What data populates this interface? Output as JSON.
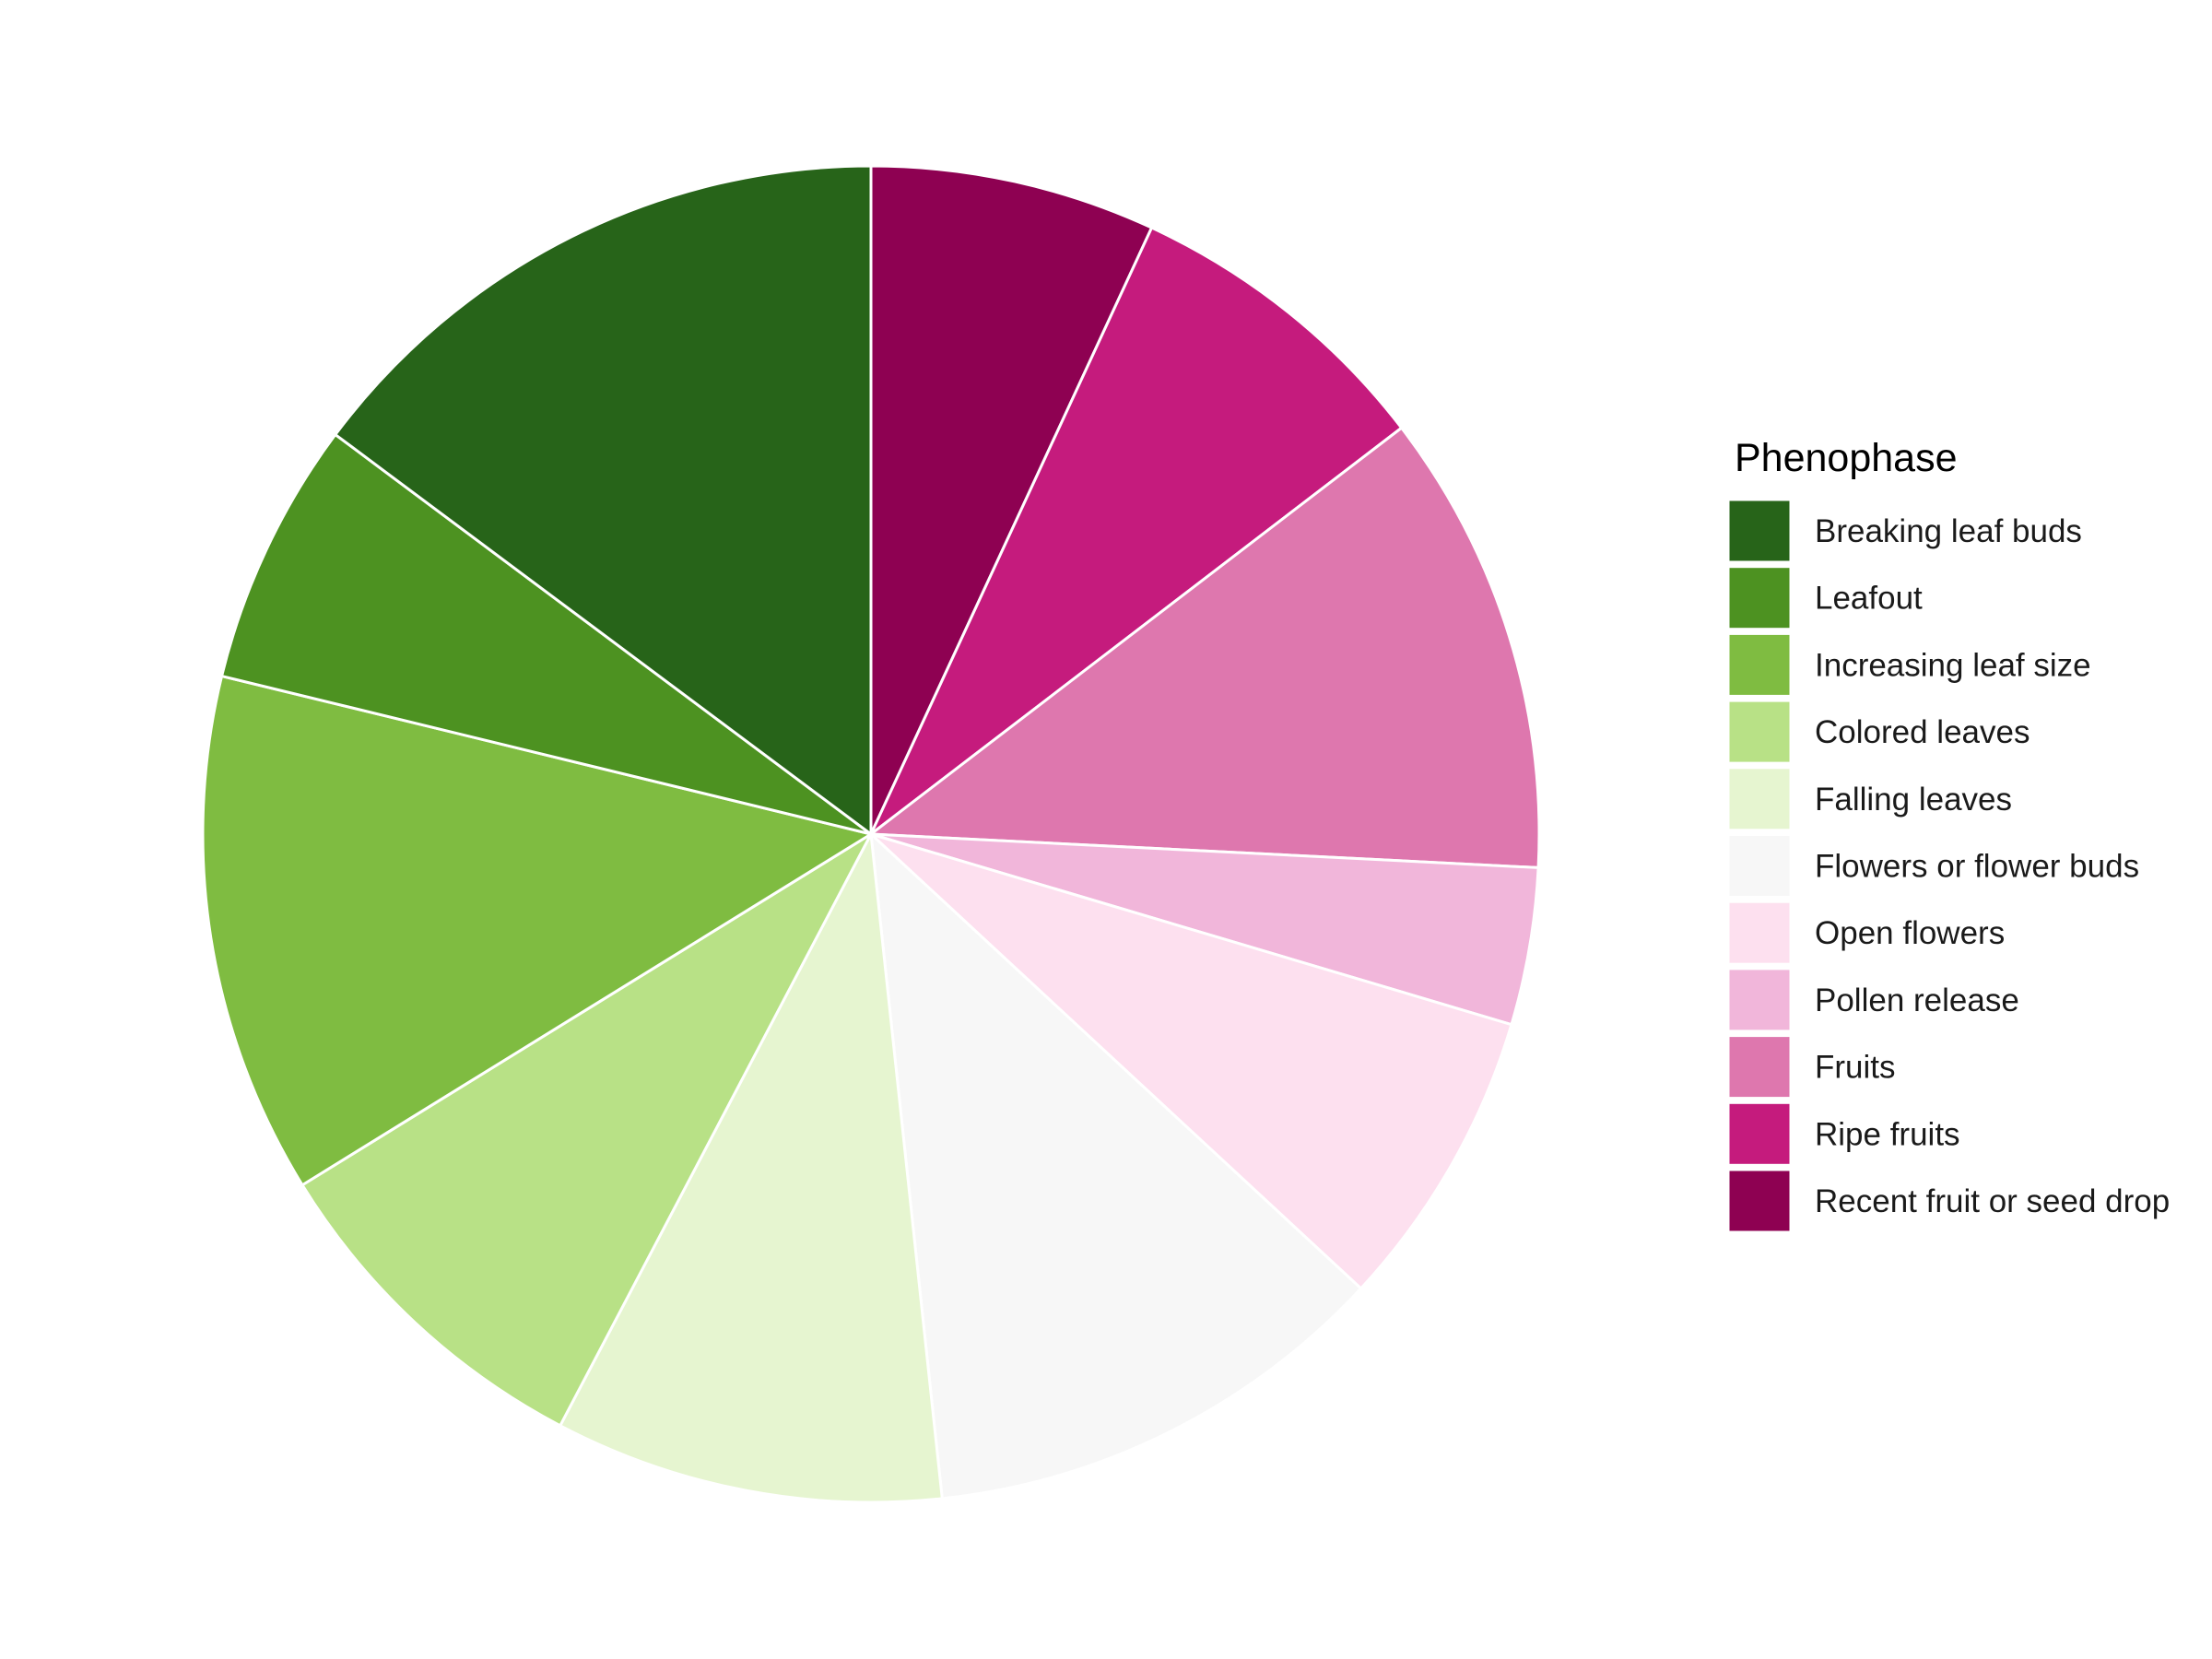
{
  "chart_data": {
    "type": "pie",
    "legend_title": "Phenophase",
    "legend_position": "right",
    "start_angle_deg": 0,
    "direction": "clockwise",
    "slices": [
      {
        "label": "Recent fruit or seed drop",
        "value": 6.9,
        "color": "#8E0152"
      },
      {
        "label": "Ripe fruits",
        "value": 7.7,
        "color": "#C51B7D"
      },
      {
        "label": "Fruits",
        "value": 11.2,
        "color": "#DE77AE"
      },
      {
        "label": "Pollen release",
        "value": 3.8,
        "color": "#F1B6DA"
      },
      {
        "label": "Open flowers",
        "value": 7.3,
        "color": "#FDE0EF"
      },
      {
        "label": "Flowers or flower buds",
        "value": 11.4,
        "color": "#F7F7F7"
      },
      {
        "label": "Falling leaves",
        "value": 9.4,
        "color": "#E6F5D0"
      },
      {
        "label": "Colored leaves",
        "value": 8.5,
        "color": "#B8E186"
      },
      {
        "label": "Increasing leaf size",
        "value": 12.6,
        "color": "#7FBC41"
      },
      {
        "label": "Leafout",
        "value": 6.4,
        "color": "#4D9221"
      },
      {
        "label": "Breaking leaf buds",
        "value": 14.8,
        "color": "#276419"
      }
    ],
    "legend_order": [
      "Breaking leaf buds",
      "Leafout",
      "Increasing leaf size",
      "Colored leaves",
      "Falling leaves",
      "Flowers or flower buds",
      "Open flowers",
      "Pollen release",
      "Fruits",
      "Ripe fruits",
      "Recent fruit or seed drop"
    ]
  }
}
